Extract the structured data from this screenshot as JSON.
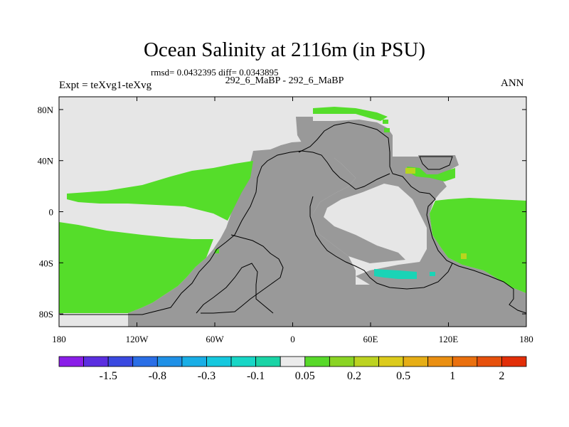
{
  "chart_data": {
    "type": "heatmap",
    "title": "Ocean Salinity at 2116m (in PSU)",
    "subtitle_stats": "rmsd= 0.0432395 diff= 0.0343895",
    "subtitle_case": "292_6_MaBP - 292_6_MaBP",
    "left_label": "Expt = teXvg1-teXvg",
    "right_label": "ANN",
    "x_range": [
      -180,
      180
    ],
    "y_range": [
      -90,
      90
    ],
    "x_ticks": [
      {
        "value": -180,
        "label": "180"
      },
      {
        "value": -120,
        "label": "120W"
      },
      {
        "value": -60,
        "label": "60W"
      },
      {
        "value": 0,
        "label": "0"
      },
      {
        "value": 60,
        "label": "60E"
      },
      {
        "value": 120,
        "label": "120E"
      },
      {
        "value": 180,
        "label": "180"
      }
    ],
    "y_ticks": [
      {
        "value": 80,
        "label": "80N"
      },
      {
        "value": 40,
        "label": "40N"
      },
      {
        "value": 0,
        "label": "0"
      },
      {
        "value": -40,
        "label": "40S"
      },
      {
        "value": -80,
        "label": "80S"
      }
    ],
    "colorbar": {
      "colors": [
        "#8a1ee8",
        "#5b2ee0",
        "#3a49e0",
        "#2a6ee6",
        "#1f90e6",
        "#19aee6",
        "#16c8de",
        "#18d6c6",
        "#1ad4a6",
        "#ebebeb",
        "#58d92a",
        "#8ad424",
        "#bcd321",
        "#dccb1c",
        "#e6ae16",
        "#ea8f12",
        "#ea700e",
        "#e6500c",
        "#e22e08"
      ],
      "labels": [
        "-1.5",
        "-0.8",
        "-0.3",
        "-0.1",
        "0.05",
        "0.2",
        "0.5",
        "1",
        "2"
      ]
    },
    "fields": {
      "background": "#e6e6e6",
      "land": "#999999",
      "positive_small": "#55dd2a",
      "positive_mid": "#93d91e",
      "negative_small": "#1ad4b6"
    }
  }
}
